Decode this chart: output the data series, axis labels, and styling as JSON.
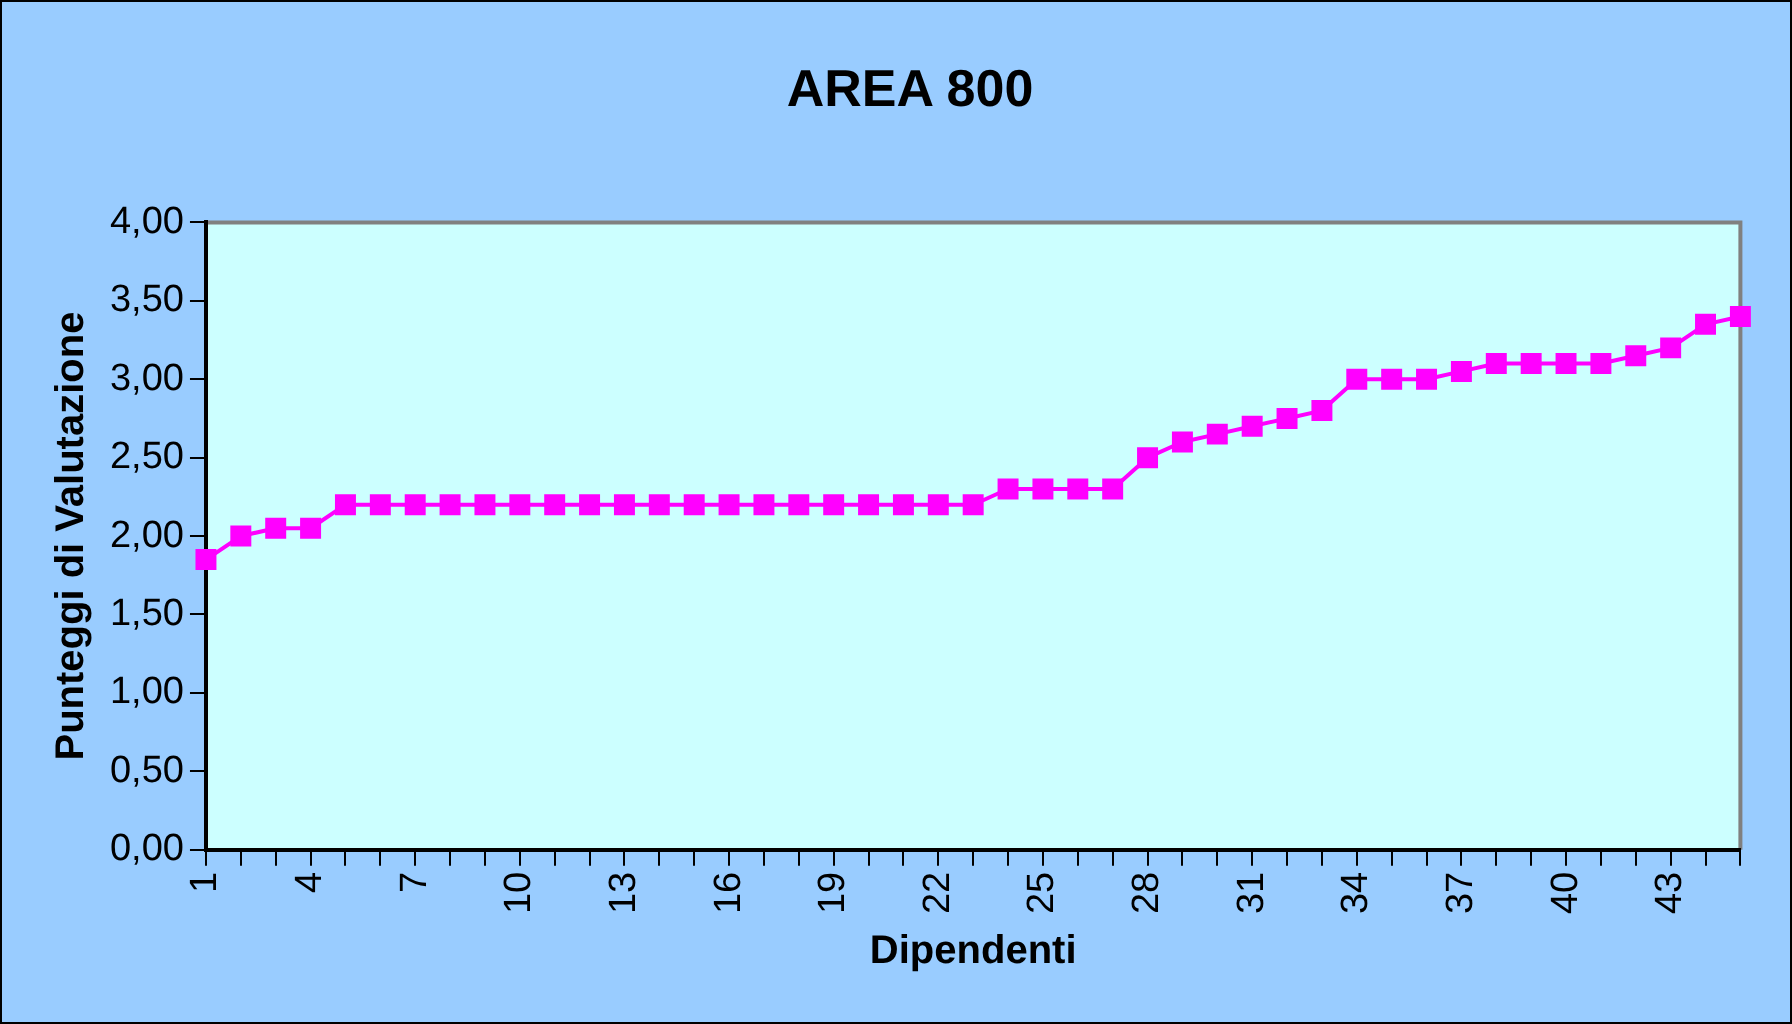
{
  "chart_data": {
    "type": "line",
    "title": "AREA 800",
    "xlabel": "Dipendenti",
    "ylabel": "Punteggi di Valutazione",
    "categories": [
      "1",
      null,
      null,
      "4",
      null,
      null,
      "7",
      null,
      null,
      "10",
      null,
      null,
      "13",
      null,
      null,
      "16",
      null,
      null,
      "19",
      null,
      null,
      "22",
      null,
      null,
      "25",
      null,
      null,
      "28",
      null,
      null,
      "31",
      null,
      null,
      "34",
      null,
      null,
      "37",
      null,
      null,
      "40",
      null,
      null,
      "43",
      null,
      null
    ],
    "series": [
      {
        "color": "#ff00ff",
        "values": [
          1.85,
          2.0,
          2.05,
          2.05,
          2.2,
          2.2,
          2.2,
          2.2,
          2.2,
          2.2,
          2.2,
          2.2,
          2.2,
          2.2,
          2.2,
          2.2,
          2.2,
          2.2,
          2.2,
          2.2,
          2.2,
          2.2,
          2.2,
          2.3,
          2.3,
          2.3,
          2.3,
          2.5,
          2.6,
          2.65,
          2.7,
          2.75,
          2.8,
          3.0,
          3.0,
          3.0,
          3.05,
          3.1,
          3.1,
          3.1,
          3.1,
          3.15,
          3.2,
          3.35,
          3.4
        ]
      }
    ],
    "ylim": [
      0,
      4
    ],
    "yticks": [
      {
        "value": 0,
        "label": "0,00"
      },
      {
        "value": 0.5,
        "label": "0,50"
      },
      {
        "value": 1,
        "label": "1,00"
      },
      {
        "value": 1.5,
        "label": "1,50"
      },
      {
        "value": 2,
        "label": "2,00"
      },
      {
        "value": 2.5,
        "label": "2,50"
      },
      {
        "value": 3,
        "label": "3,00"
      },
      {
        "value": 3.5,
        "label": "3,50"
      },
      {
        "value": 4,
        "label": "4,00"
      }
    ],
    "legend": false,
    "marker": "square",
    "line_style": "solid"
  }
}
